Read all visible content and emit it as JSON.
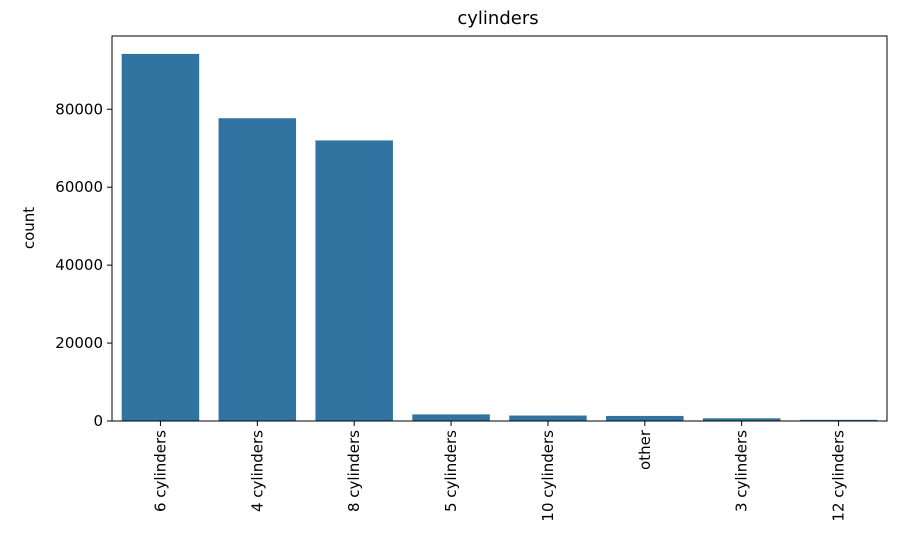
{
  "chart_data": {
    "type": "bar",
    "title": "cylinders",
    "xlabel": "",
    "ylabel": "count",
    "categories": [
      "6 cylinders",
      "4 cylinders",
      "8 cylinders",
      "5 cylinders",
      "10 cylinders",
      "other",
      "3 cylinders",
      "12 cylinders"
    ],
    "values": [
      94200,
      77700,
      72000,
      1700,
      1400,
      1300,
      700,
      300
    ],
    "ylim": [
      0,
      98800
    ],
    "yticks": [
      0,
      20000,
      40000,
      60000,
      80000
    ],
    "grid": false,
    "bar_color": "#3274a1"
  }
}
